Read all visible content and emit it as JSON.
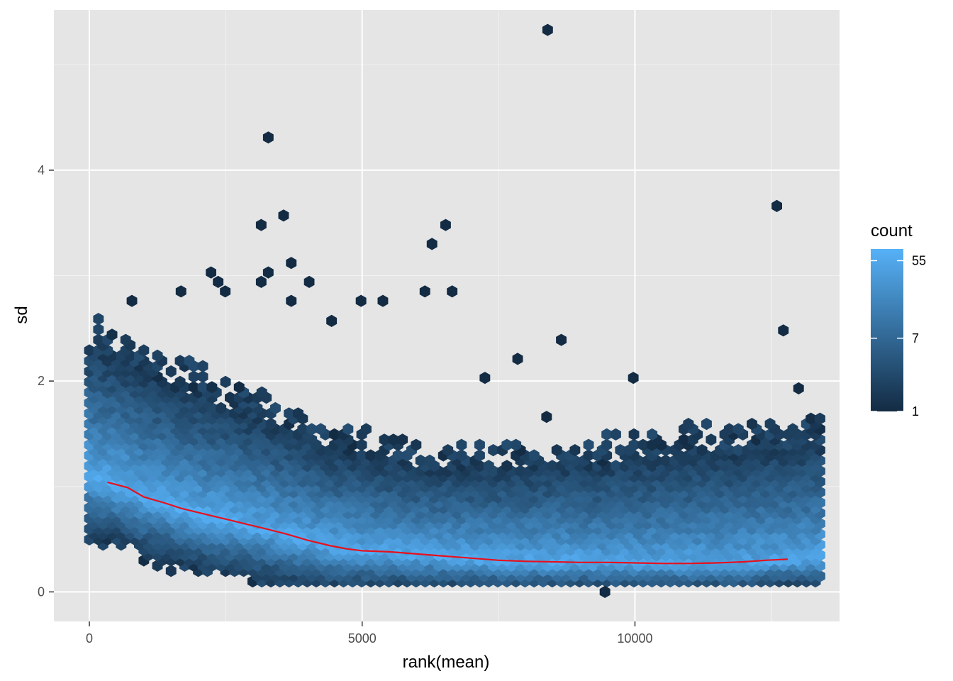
{
  "chart_data": {
    "type": "hexbin",
    "xlabel": "rank(mean)",
    "ylabel": "sd",
    "xlim": [
      -650,
      13750
    ],
    "ylim": [
      -0.28,
      5.52
    ],
    "x_ticks": [
      0,
      5000,
      10000
    ],
    "x_tick_labels": [
      "0",
      "5000",
      "10000"
    ],
    "y_ticks": [
      0,
      2,
      4
    ],
    "y_tick_labels": [
      "0",
      "2",
      "4"
    ],
    "grid": true,
    "panel_background": "#e5e5e5",
    "legend": {
      "title": "count",
      "position": "right",
      "scale": "log",
      "breaks": [
        1,
        7,
        55
      ],
      "break_labels": [
        "1",
        "7",
        "55"
      ],
      "range": [
        1,
        75
      ],
      "color_low": "#132b43",
      "color_high": "#56b1f7"
    },
    "trend_line": {
      "color": "#e8101c",
      "x": [
        330,
        700,
        1000,
        1400,
        1700,
        2100,
        2500,
        2900,
        3300,
        3600,
        4000,
        4400,
        4700,
        5000,
        5500,
        6000,
        6500,
        7000,
        7500,
        8000,
        8500,
        9000,
        9500,
        10000,
        10500,
        11000,
        11500,
        12000,
        12400,
        12800
      ],
      "y": [
        1.04,
        0.99,
        0.9,
        0.84,
        0.79,
        0.74,
        0.69,
        0.64,
        0.59,
        0.55,
        0.49,
        0.44,
        0.41,
        0.39,
        0.38,
        0.36,
        0.34,
        0.32,
        0.3,
        0.29,
        0.285,
        0.28,
        0.28,
        0.275,
        0.27,
        0.27,
        0.275,
        0.285,
        0.3,
        0.31
      ]
    },
    "outliers": [
      {
        "x": 8400,
        "y": 5.33,
        "count": 1
      },
      {
        "x": 3280,
        "y": 4.31,
        "count": 1
      },
      {
        "x": 12600,
        "y": 3.66,
        "count": 1
      },
      {
        "x": 3560,
        "y": 3.57,
        "count": 1
      },
      {
        "x": 3150,
        "y": 3.48,
        "count": 1
      },
      {
        "x": 6530,
        "y": 3.48,
        "count": 1
      },
      {
        "x": 6280,
        "y": 3.3,
        "count": 1
      },
      {
        "x": 3700,
        "y": 3.12,
        "count": 1
      },
      {
        "x": 3280,
        "y": 3.03,
        "count": 1
      },
      {
        "x": 2230,
        "y": 3.03,
        "count": 1
      },
      {
        "x": 2360,
        "y": 2.94,
        "count": 1
      },
      {
        "x": 4030,
        "y": 2.94,
        "count": 1
      },
      {
        "x": 3150,
        "y": 2.94,
        "count": 1
      },
      {
        "x": 6150,
        "y": 2.85,
        "count": 1
      },
      {
        "x": 6650,
        "y": 2.85,
        "count": 1
      },
      {
        "x": 1680,
        "y": 2.85,
        "count": 1
      },
      {
        "x": 2490,
        "y": 2.85,
        "count": 1
      },
      {
        "x": 780,
        "y": 2.76,
        "count": 1
      },
      {
        "x": 4980,
        "y": 2.76,
        "count": 1
      },
      {
        "x": 5380,
        "y": 2.76,
        "count": 1
      },
      {
        "x": 3700,
        "y": 2.76,
        "count": 1
      },
      {
        "x": 12720,
        "y": 2.48,
        "count": 1
      },
      {
        "x": 8650,
        "y": 2.39,
        "count": 1
      },
      {
        "x": 4440,
        "y": 2.57,
        "count": 1
      },
      {
        "x": 7850,
        "y": 2.21,
        "count": 1
      },
      {
        "x": 9970,
        "y": 2.03,
        "count": 1
      },
      {
        "x": 13000,
        "y": 1.93,
        "count": 1
      },
      {
        "x": 7250,
        "y": 2.03,
        "count": 1
      },
      {
        "x": 9450,
        "y": 0.0,
        "count": 1
      },
      {
        "x": 8380,
        "y": 1.66,
        "count": 1
      }
    ]
  }
}
